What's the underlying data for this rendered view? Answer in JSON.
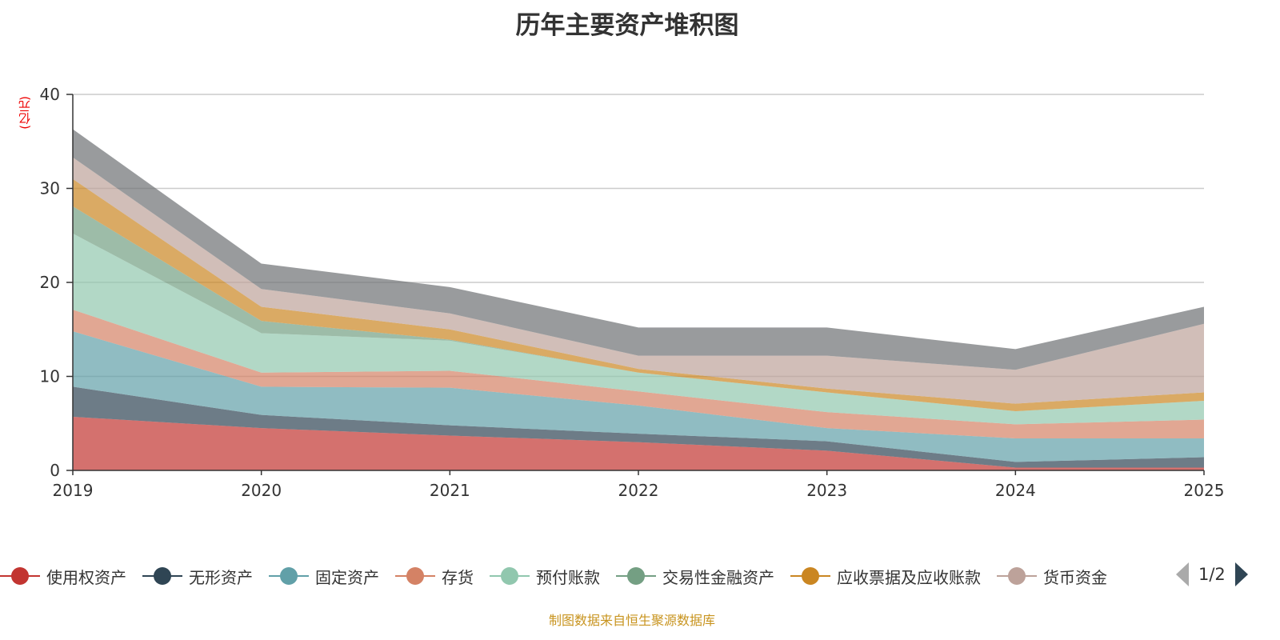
{
  "chart_data": {
    "type": "area",
    "stacked": true,
    "title": "历年主要资产堆积图",
    "ylabel": "(亿元)",
    "xlabel": "",
    "ylim": [
      0,
      40
    ],
    "yticks": [
      0,
      10,
      20,
      30,
      40
    ],
    "grid": true,
    "legend_position": "bottom",
    "categories": [
      "2019",
      "2020",
      "2021",
      "2022",
      "2023",
      "2024",
      "2025"
    ],
    "series": [
      {
        "name": "使用权资产",
        "color": "#c23531",
        "values": [
          5.7,
          4.5,
          3.7,
          3.0,
          2.1,
          0.3,
          0.3
        ]
      },
      {
        "name": "无形资产",
        "color": "#2f4554",
        "values": [
          3.2,
          1.4,
          1.1,
          0.9,
          1.0,
          0.6,
          1.1
        ]
      },
      {
        "name": "固定资产",
        "color": "#61a0a8",
        "values": [
          5.9,
          3.0,
          4.0,
          3.0,
          1.4,
          2.5,
          2.0
        ]
      },
      {
        "name": "存货",
        "color": "#d48265",
        "values": [
          2.3,
          1.5,
          1.8,
          1.5,
          1.7,
          1.5,
          2.0
        ]
      },
      {
        "name": "预付账款",
        "color": "#91c7ae",
        "values": [
          8.1,
          4.2,
          3.2,
          2.0,
          2.1,
          1.4,
          2.0
        ]
      },
      {
        "name": "交易性金融资产",
        "color": "#749f83",
        "values": [
          2.9,
          1.3,
          0.1,
          0,
          0,
          0,
          0
        ]
      },
      {
        "name": "应收票据及应收账款",
        "color": "#ca8622",
        "values": [
          2.9,
          1.5,
          1.1,
          0.4,
          0.4,
          0.8,
          0.9
        ]
      },
      {
        "name": "货币资金",
        "color": "#bda29a",
        "values": [
          2.3,
          1.9,
          1.7,
          1.4,
          3.5,
          3.6,
          7.3
        ]
      },
      {
        "name": "",
        "color": "#6e7074",
        "values": [
          3.0,
          2.7,
          2.8,
          3.0,
          3.0,
          2.2,
          1.8
        ]
      }
    ]
  },
  "legend": {
    "page": "1/2"
  },
  "footer": "制图数据来自恒生聚源数据库"
}
